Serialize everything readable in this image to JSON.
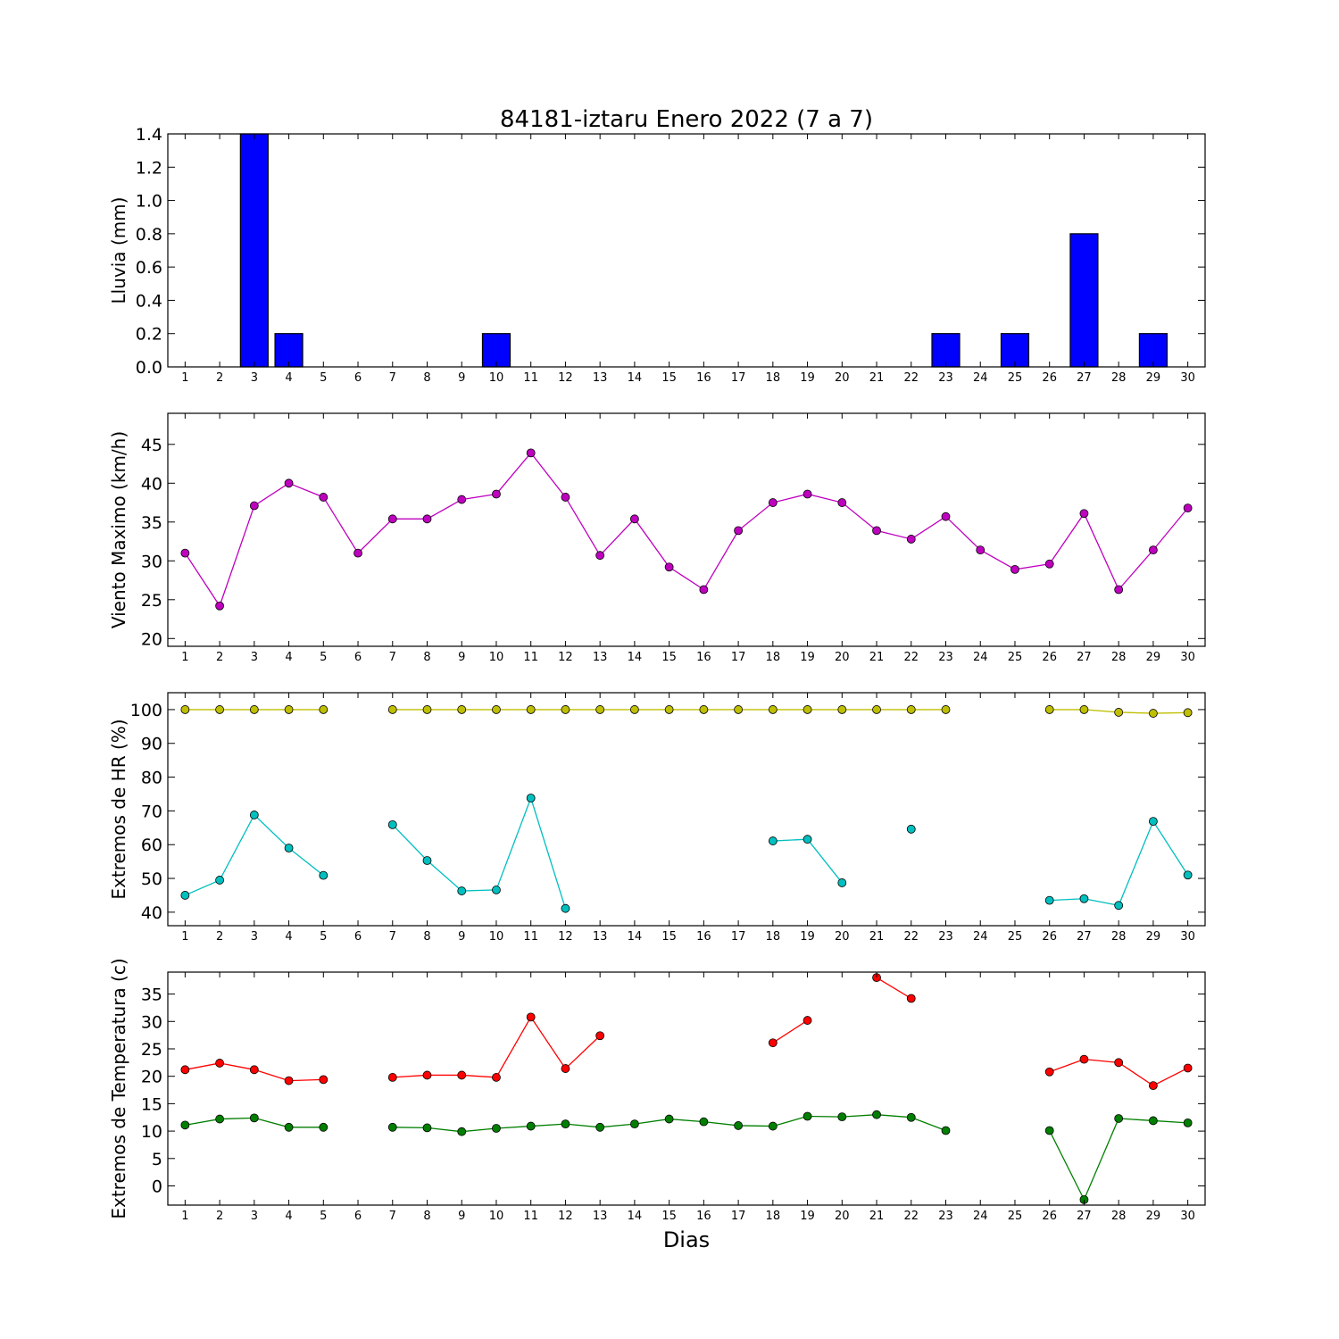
{
  "title": "84181-iztaru Enero 2022  (7 a 7)",
  "xlabel": "Dias",
  "chart_data": [
    {
      "type": "bar",
      "ylabel": "Lluvia (mm)",
      "x": [
        1,
        2,
        3,
        4,
        5,
        6,
        7,
        8,
        9,
        10,
        11,
        12,
        13,
        14,
        15,
        16,
        17,
        18,
        19,
        20,
        21,
        22,
        23,
        24,
        25,
        26,
        27,
        28,
        29,
        30
      ],
      "ylim": [
        0,
        1.4
      ],
      "yticks": [
        "0.0",
        "0.2",
        "0.4",
        "0.6",
        "0.8",
        "1.0",
        "1.2",
        "1.4"
      ],
      "color": "#0000ff",
      "series": [
        {
          "values": [
            0,
            0,
            1.4,
            0.2,
            0,
            0,
            0,
            0,
            0,
            0.2,
            0,
            0,
            0,
            0,
            0,
            0,
            0,
            0,
            0,
            0,
            0,
            0,
            0.2,
            0,
            0.2,
            0,
            0.8,
            0,
            0.2,
            0
          ]
        }
      ]
    },
    {
      "type": "line",
      "ylabel": "Viento Maximo (km/h)",
      "x": [
        1,
        2,
        3,
        4,
        5,
        6,
        7,
        8,
        9,
        10,
        11,
        12,
        13,
        14,
        15,
        16,
        17,
        18,
        19,
        20,
        21,
        22,
        23,
        24,
        25,
        26,
        27,
        28,
        29,
        30
      ],
      "ylim": [
        19,
        49
      ],
      "yticks": [
        "20",
        "25",
        "30",
        "35",
        "40",
        "45"
      ],
      "series": [
        {
          "color": "#bf00bf",
          "values": [
            31,
            24.2,
            37.1,
            40,
            38.2,
            31,
            35.4,
            35.4,
            37.9,
            38.6,
            43.9,
            38.2,
            30.7,
            35.4,
            29.2,
            26.3,
            33.9,
            37.5,
            38.6,
            37.5,
            33.9,
            32.8,
            35.7,
            31.4,
            28.9,
            29.6,
            36.1,
            26.3,
            31.4,
            36.8
          ]
        }
      ]
    },
    {
      "type": "line",
      "ylabel": "Extremos de HR (%)",
      "x": [
        1,
        2,
        3,
        4,
        5,
        6,
        7,
        8,
        9,
        10,
        11,
        12,
        13,
        14,
        15,
        16,
        17,
        18,
        19,
        20,
        21,
        22,
        23,
        24,
        25,
        26,
        27,
        28,
        29,
        30
      ],
      "ylim": [
        36,
        105
      ],
      "yticks": [
        "40",
        "50",
        "60",
        "70",
        "80",
        "90",
        "100"
      ],
      "series": [
        {
          "color": "#bfbf00",
          "values": [
            100,
            100,
            100,
            100,
            100,
            null,
            100,
            100,
            100,
            100,
            100,
            100,
            100,
            100,
            100,
            100,
            100,
            100,
            100,
            100,
            100,
            100,
            100,
            null,
            null,
            100,
            100,
            99.2,
            98.9,
            99.1
          ]
        },
        {
          "color": "#00bfbf",
          "values": [
            45,
            49.5,
            68.8,
            59,
            50.9,
            null,
            65.9,
            55.3,
            46.3,
            46.6,
            73.8,
            41.1,
            null,
            null,
            null,
            null,
            null,
            61.1,
            61.6,
            48.7,
            null,
            64.6,
            null,
            null,
            null,
            43.5,
            44,
            42,
            66.9,
            51
          ]
        }
      ]
    },
    {
      "type": "line",
      "ylabel": "Extremos de Temperatura (c)",
      "x": [
        1,
        2,
        3,
        4,
        5,
        6,
        7,
        8,
        9,
        10,
        11,
        12,
        13,
        14,
        15,
        16,
        17,
        18,
        19,
        20,
        21,
        22,
        23,
        24,
        25,
        26,
        27,
        28,
        29,
        30
      ],
      "ylim": [
        -3.5,
        39
      ],
      "yticks": [
        "0",
        "5",
        "10",
        "15",
        "20",
        "25",
        "30",
        "35"
      ],
      "series": [
        {
          "color": "#ff0000",
          "values": [
            21.2,
            22.4,
            21.2,
            19.2,
            19.4,
            null,
            19.8,
            20.2,
            20.2,
            19.8,
            30.8,
            21.4,
            27.4,
            null,
            null,
            null,
            null,
            26.1,
            30.2,
            null,
            38,
            34.2,
            null,
            null,
            null,
            20.8,
            23.1,
            22.5,
            18.3,
            21.5
          ]
        },
        {
          "color": "#007f00",
          "values": [
            11.1,
            12.2,
            12.4,
            10.7,
            10.7,
            null,
            10.7,
            10.6,
            9.9,
            10.5,
            10.9,
            11.3,
            10.7,
            11.3,
            12.2,
            11.7,
            11,
            10.9,
            12.7,
            12.6,
            13,
            12.5,
            10.1,
            null,
            null,
            10.1,
            -2.5,
            12.3,
            11.9,
            11.5
          ]
        }
      ]
    }
  ]
}
